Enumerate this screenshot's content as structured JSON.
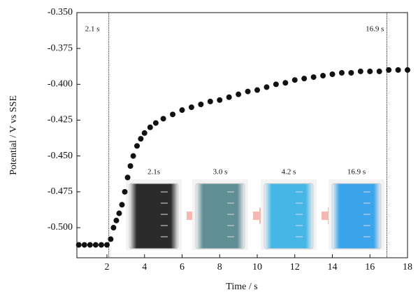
{
  "chart_data": {
    "type": "scatter",
    "x_label": "Time / s",
    "y_label": "Potential / V vs SSE",
    "x": [
      0.5,
      0.8,
      1.1,
      1.4,
      1.7,
      2.0,
      2.2,
      2.35,
      2.5,
      2.65,
      2.8,
      2.95,
      3.1,
      3.25,
      3.4,
      3.6,
      3.8,
      4.0,
      4.3,
      4.6,
      5.0,
      5.5,
      6.0,
      6.5,
      7.0,
      7.5,
      8.0,
      8.5,
      9.0,
      9.5,
      10,
      10.5,
      11,
      11.5,
      12,
      12.5,
      13,
      13.5,
      14,
      14.5,
      15,
      15.5,
      16,
      16.5,
      17,
      17.5,
      18
    ],
    "values": [
      -0.512,
      -0.512,
      -0.512,
      -0.512,
      -0.512,
      -0.512,
      -0.508,
      -0.5,
      -0.495,
      -0.49,
      -0.484,
      -0.475,
      -0.465,
      -0.457,
      -0.45,
      -0.443,
      -0.438,
      -0.434,
      -0.43,
      -0.427,
      -0.424,
      -0.421,
      -0.418,
      -0.416,
      -0.414,
      -0.412,
      -0.411,
      -0.409,
      -0.407,
      -0.405,
      -0.404,
      -0.402,
      -0.4,
      -0.399,
      -0.397,
      -0.396,
      -0.395,
      -0.394,
      -0.393,
      -0.392,
      -0.392,
      -0.391,
      -0.391,
      -0.391,
      -0.39,
      -0.39,
      -0.39
    ],
    "color": "#111111",
    "xlim": [
      0.4,
      18
    ],
    "xticks": [
      2,
      4,
      6,
      8,
      10,
      12,
      14,
      16,
      18
    ],
    "ylim": [
      -0.521,
      -0.35
    ],
    "yticks": [
      {
        "value": -0.5,
        "label": "-0.500"
      },
      {
        "value": -0.475,
        "label": "-0.475"
      },
      {
        "value": -0.45,
        "label": "-0.450"
      },
      {
        "value": -0.425,
        "label": "-0.425"
      },
      {
        "value": -0.4,
        "label": "-0.400"
      },
      {
        "value": -0.375,
        "label": "-0.375"
      },
      {
        "value": -0.35,
        "label": "-0.350"
      }
    ],
    "vlines": [
      {
        "x": 2.1,
        "label": "2.1 s"
      },
      {
        "x": 16.9,
        "label": "16.9 s"
      }
    ],
    "insets": [
      {
        "label": "2.1s",
        "color": "#2b2b2b"
      },
      {
        "label": "3.0 s",
        "color": "#5f8e95"
      },
      {
        "label": "4.2 s",
        "color": "#45b6e6"
      },
      {
        "label": "16.9 s",
        "color": "#3aa4ea"
      }
    ]
  }
}
